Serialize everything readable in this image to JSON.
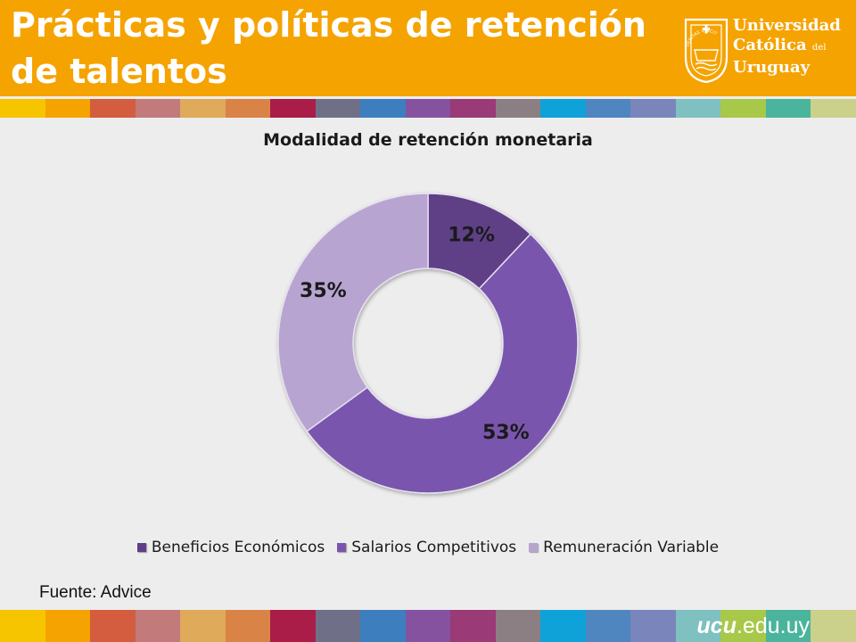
{
  "slide": {
    "title": "Prácticas y políticas de retención de talentos",
    "source": "Fuente:  Advice",
    "site_bold": "ucu",
    "site_rest": ".edu.uy"
  },
  "logo": {
    "line1": "Universidad",
    "line2": "Católica",
    "line2_small": "del",
    "line3": "Uruguay",
    "seal_text": "VERITAS VINCIT"
  },
  "colors": {
    "header_bg": "#f5a300",
    "background": "#ededed",
    "series": [
      "#5e3f87",
      "#7a55ad",
      "#b7a4d0"
    ]
  },
  "chart_data": {
    "type": "pie",
    "donut": true,
    "title": "Modalidad de retención monetaria",
    "categories": [
      "Beneficios Económicos",
      "Salarios Competitivos",
      "Remuneración Variable"
    ],
    "values": [
      12,
      53,
      35
    ],
    "labels": [
      "12%",
      "53%",
      "35%"
    ],
    "legend_position": "bottom"
  }
}
